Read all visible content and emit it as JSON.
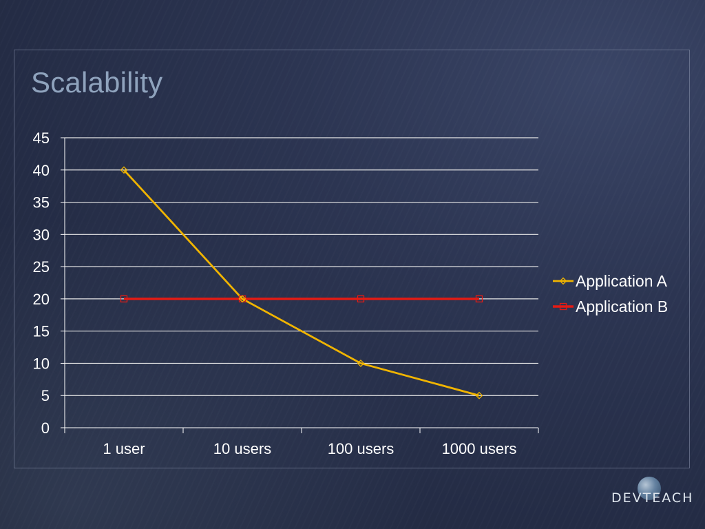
{
  "slide": {
    "title": "Scalability",
    "logo_text": "DEVTEACH"
  },
  "colors": {
    "series_a": "#f0b400",
    "series_b": "#e41b14",
    "gridline": "#e6e6e6",
    "axis": "#ffffff",
    "text": "#ffffff",
    "title": "#8fa3bd"
  },
  "chart_data": {
    "type": "line",
    "title": "",
    "xlabel": "",
    "ylabel": "",
    "categories": [
      "1 user",
      "10 users",
      "100 users",
      "1000 users"
    ],
    "ylim": [
      0,
      45
    ],
    "yticks": [
      0,
      5,
      10,
      15,
      20,
      25,
      30,
      35,
      40,
      45
    ],
    "grid": true,
    "legend_position": "right",
    "series": [
      {
        "name": "Application A",
        "values": [
          40,
          20,
          10,
          5
        ],
        "marker": "diamond",
        "color": "#f0b400"
      },
      {
        "name": "Application B",
        "values": [
          20,
          20,
          20,
          20
        ],
        "marker": "square",
        "color": "#e41b14"
      }
    ]
  }
}
